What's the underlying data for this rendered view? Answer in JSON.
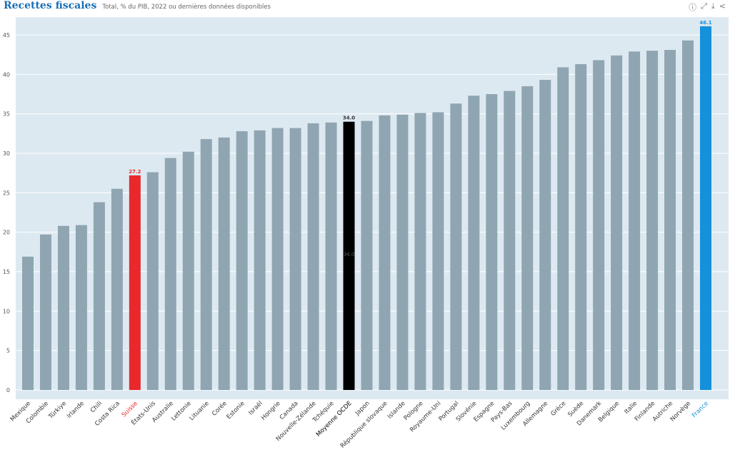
{
  "header": {
    "title": "Recettes fiscales",
    "subtitle": "Total, % du PIB, 2022 ou dernières données disponibles"
  },
  "toolbar": {
    "icons": [
      "info-icon",
      "fullscreen-icon",
      "download-icon",
      "share-icon"
    ]
  },
  "chart_data": {
    "type": "bar",
    "title": "Recettes fiscales",
    "subtitle": "Total, % du PIB, 2022 ou dernières données disponibles",
    "ylim": [
      0,
      47
    ],
    "yticks": [
      0,
      5,
      10,
      15,
      20,
      25,
      30,
      35,
      40,
      45
    ],
    "grid": true,
    "colors": {
      "default": "#8fa5b2",
      "highlight_suisse": "#e8282b",
      "oecd": "#000000",
      "france": "#1591dc",
      "background": "#dde9f1"
    },
    "categories": [
      "Mexique",
      "Colombie",
      "Türkiye",
      "Irlande",
      "Chili",
      "Costa Rica",
      "Suisse",
      "États-Unis",
      "Australie",
      "Lettonie",
      "Lituanie",
      "Corée",
      "Estonie",
      "Israël",
      "Hongrie",
      "Canada",
      "Nouvelle-Zélande",
      "Tchéquie",
      "Moyenne OCDE",
      "Japon",
      "République slovaque",
      "Islande",
      "Pologne",
      "Royaume-Uni",
      "Portugal",
      "Slovénie",
      "Espagne",
      "Pays-Bas",
      "Luxembourg",
      "Allemagne",
      "Grèce",
      "Suède",
      "Danemark",
      "Belgique",
      "Italie",
      "Finlande",
      "Autriche",
      "Norvège",
      "France"
    ],
    "values": [
      16.9,
      19.7,
      20.8,
      20.9,
      23.8,
      25.5,
      27.2,
      27.6,
      29.4,
      30.2,
      31.8,
      32.0,
      32.8,
      32.9,
      33.2,
      33.2,
      33.8,
      33.9,
      34.0,
      34.1,
      34.8,
      34.9,
      35.1,
      35.2,
      36.3,
      37.3,
      37.5,
      37.9,
      38.5,
      39.3,
      40.9,
      41.3,
      41.8,
      42.4,
      42.9,
      43.0,
      43.1,
      44.3,
      46.1
    ],
    "data_labels": {
      "Suisse": "27.2",
      "Moyenne OCDE": "34.0",
      "France": "46.1"
    }
  }
}
